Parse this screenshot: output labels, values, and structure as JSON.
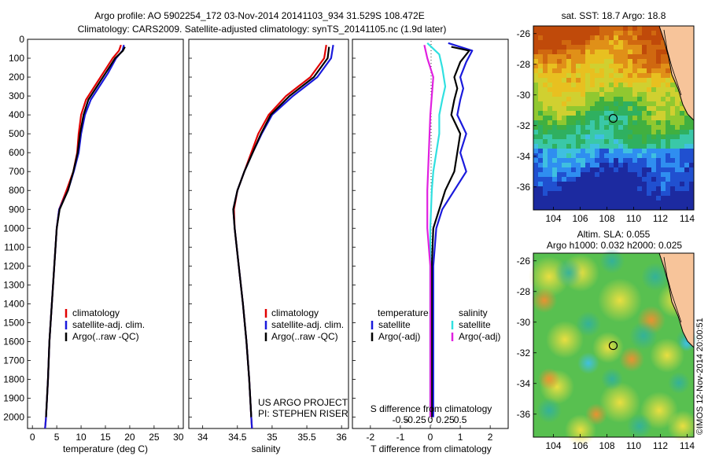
{
  "header": {
    "title_line1": "Argo profile: AO 5902254_172 03-Nov-2014 20141103_934 31.529S 108.472E",
    "title_line2": "Climatology: CARS2009. Satellite-adjusted climatology: synTS_20141105.nc (1.9d later)"
  },
  "colors": {
    "climatology": "#e00000",
    "satellite": "#1a1adc",
    "argo": "#000000",
    "sal_sat": "#30e0e0",
    "sal_argo": "#e020e0"
  },
  "chart_data": [
    {
      "type": "line",
      "name": "temperature-profile",
      "xlabel": "temperature (deg C)",
      "xticks": [
        0,
        5,
        10,
        15,
        20,
        25,
        30
      ],
      "xlim": [
        -1,
        31
      ],
      "ylim": [
        2060,
        0
      ],
      "yticks": [
        0,
        100,
        200,
        300,
        400,
        500,
        600,
        700,
        800,
        900,
        1000,
        1100,
        1200,
        1300,
        1400,
        1500,
        1600,
        1700,
        1800,
        1900,
        2000
      ],
      "legend": [
        "climatology",
        "satellite-adj. clim.",
        "Argo(..raw -QC)"
      ],
      "series": [
        {
          "name": "climatology",
          "color": "#e00000",
          "points": [
            [
              18.2,
              30
            ],
            [
              17.8,
              60
            ],
            [
              16.5,
              100
            ],
            [
              14.5,
              180
            ],
            [
              12.5,
              260
            ],
            [
              11,
              320
            ],
            [
              10,
              400
            ],
            [
              9.5,
              500
            ],
            [
              9.2,
              600
            ],
            [
              8.4,
              700
            ],
            [
              7,
              800
            ],
            [
              5.5,
              900
            ],
            [
              5,
              1000
            ],
            [
              4.5,
              1200
            ],
            [
              4,
              1400
            ],
            [
              3.5,
              1600
            ],
            [
              3.2,
              1800
            ],
            [
              2.8,
              2000
            ],
            [
              2.6,
              2060
            ]
          ]
        },
        {
          "name": "satellite-adj. clim.",
          "color": "#1a1adc",
          "points": [
            [
              18.8,
              30
            ],
            [
              18.5,
              60
            ],
            [
              17.2,
              100
            ],
            [
              15.5,
              180
            ],
            [
              13.5,
              260
            ],
            [
              12,
              320
            ],
            [
              10.8,
              400
            ],
            [
              10,
              500
            ],
            [
              9.5,
              600
            ],
            [
              8.5,
              700
            ],
            [
              7.3,
              800
            ],
            [
              5.5,
              900
            ],
            [
              5,
              1000
            ],
            [
              4.5,
              1200
            ],
            [
              4,
              1400
            ],
            [
              3.5,
              1600
            ],
            [
              3.2,
              1800
            ],
            [
              2.8,
              2000
            ],
            [
              2.6,
              2060
            ]
          ]
        },
        {
          "name": "Argo(..raw -QC)",
          "color": "#000000",
          "points": [
            [
              19,
              40
            ],
            [
              18.6,
              60
            ],
            [
              17,
              100
            ],
            [
              15,
              180
            ],
            [
              13,
              260
            ],
            [
              11.5,
              320
            ],
            [
              10.5,
              400
            ],
            [
              9.8,
              500
            ],
            [
              9.3,
              600
            ],
            [
              8.4,
              700
            ],
            [
              7.3,
              800
            ],
            [
              5.6,
              900
            ],
            [
              5,
              1000
            ],
            [
              4.5,
              1200
            ],
            [
              4,
              1400
            ],
            [
              3.5,
              1600
            ],
            [
              3.2,
              1800
            ],
            [
              2.8,
              2000
            ]
          ]
        }
      ]
    },
    {
      "type": "line",
      "name": "salinity-profile",
      "xlabel": "salinity",
      "xticks": [
        34,
        34.5,
        35,
        35.5,
        36
      ],
      "xlim": [
        33.8,
        36.1
      ],
      "ylim": [
        2060,
        0
      ],
      "legend": [
        "climatology",
        "satellite-adj. clim.",
        "Argo(..raw -QC)"
      ],
      "annotation": [
        "US ARGO PROJECT",
        "PI: STEPHEN RISER"
      ],
      "series": [
        {
          "name": "climatology",
          "color": "#e00000",
          "points": [
            [
              35.78,
              30
            ],
            [
              35.75,
              100
            ],
            [
              35.55,
              200
            ],
            [
              35.2,
              300
            ],
            [
              34.95,
              400
            ],
            [
              34.8,
              500
            ],
            [
              34.7,
              600
            ],
            [
              34.6,
              700
            ],
            [
              34.5,
              800
            ],
            [
              34.45,
              900
            ],
            [
              34.46,
              1000
            ],
            [
              34.52,
              1200
            ],
            [
              34.58,
              1400
            ],
            [
              34.63,
              1600
            ],
            [
              34.67,
              1800
            ],
            [
              34.7,
              2000
            ],
            [
              34.71,
              2060
            ]
          ]
        },
        {
          "name": "satellite-adj. clim.",
          "color": "#1a1adc",
          "points": [
            [
              35.88,
              30
            ],
            [
              35.85,
              100
            ],
            [
              35.65,
              200
            ],
            [
              35.3,
              300
            ],
            [
              35.0,
              400
            ],
            [
              34.85,
              500
            ],
            [
              34.72,
              600
            ],
            [
              34.6,
              700
            ],
            [
              34.5,
              800
            ],
            [
              34.44,
              900
            ],
            [
              34.46,
              1000
            ],
            [
              34.52,
              1200
            ],
            [
              34.58,
              1400
            ],
            [
              34.63,
              1600
            ],
            [
              34.67,
              1800
            ],
            [
              34.7,
              2000
            ],
            [
              34.71,
              2060
            ]
          ]
        },
        {
          "name": "Argo(..raw -QC)",
          "color": "#000000",
          "points": [
            [
              35.82,
              40
            ],
            [
              35.8,
              100
            ],
            [
              35.6,
              200
            ],
            [
              35.25,
              300
            ],
            [
              34.98,
              400
            ],
            [
              34.84,
              500
            ],
            [
              34.72,
              600
            ],
            [
              34.6,
              700
            ],
            [
              34.5,
              800
            ],
            [
              34.44,
              900
            ],
            [
              34.46,
              1000
            ],
            [
              34.52,
              1200
            ],
            [
              34.58,
              1400
            ],
            [
              34.63,
              1600
            ],
            [
              34.67,
              1800
            ],
            [
              34.7,
              2000
            ]
          ]
        }
      ]
    },
    {
      "type": "line",
      "name": "difference-profile",
      "xlabel": "T difference from climatology",
      "xticks": [
        -2,
        -1,
        0,
        1,
        2
      ],
      "top_xlabel": "S difference from climatology",
      "top_xticks": [
        "-0.5",
        "-0.25",
        "0",
        "0.25",
        "0.5"
      ],
      "xlim": [
        -2.6,
        2.6
      ],
      "ylim": [
        2060,
        0
      ],
      "legend_left_title": "temperature",
      "legend_right_title": "salinity",
      "legend": [
        "satellite",
        "Argo(-adj)",
        "satellite",
        "Argo(-adj)"
      ],
      "series": [
        {
          "name": "temperature satellite",
          "color": "#1a1adc",
          "points": [
            [
              0.6,
              20
            ],
            [
              1.4,
              60
            ],
            [
              1.2,
              120
            ],
            [
              1.0,
              200
            ],
            [
              1.1,
              260
            ],
            [
              1.0,
              320
            ],
            [
              0.9,
              400
            ],
            [
              1.2,
              500
            ],
            [
              1.0,
              600
            ],
            [
              1.2,
              700
            ],
            [
              0.8,
              800
            ],
            [
              0.4,
              900
            ],
            [
              0.2,
              1000
            ],
            [
              0.1,
              1200
            ],
            [
              0.1,
              1500
            ],
            [
              0.1,
              2000
            ]
          ]
        },
        {
          "name": "temperature Argo(-adj)",
          "color": "#000000",
          "points": [
            [
              0.7,
              40
            ],
            [
              1.3,
              60
            ],
            [
              1.0,
              120
            ],
            [
              0.8,
              200
            ],
            [
              0.9,
              260
            ],
            [
              0.8,
              320
            ],
            [
              0.7,
              400
            ],
            [
              1.0,
              500
            ],
            [
              0.9,
              600
            ],
            [
              0.8,
              700
            ],
            [
              0.5,
              800
            ],
            [
              0.3,
              900
            ],
            [
              0.1,
              1000
            ],
            [
              0.05,
              1200
            ],
            [
              0.05,
              1500
            ],
            [
              0.05,
              2000
            ]
          ]
        },
        {
          "name": "salinity satellite",
          "color": "#30e0e0",
          "points": [
            [
              -0.1,
              20
            ],
            [
              0.3,
              80
            ],
            [
              0.4,
              150
            ],
            [
              0.5,
              250
            ],
            [
              0.4,
              320
            ],
            [
              0.3,
              400
            ],
            [
              0.3,
              500
            ],
            [
              0.2,
              600
            ],
            [
              0.1,
              700
            ],
            [
              0.05,
              800
            ],
            [
              0.0,
              1000
            ],
            [
              0.0,
              1500
            ],
            [
              0.0,
              2000
            ]
          ]
        },
        {
          "name": "salinity Argo(-adj)",
          "color": "#e020e0",
          "points": [
            [
              -0.2,
              30
            ],
            [
              -0.1,
              100
            ],
            [
              0.1,
              200
            ],
            [
              0.0,
              400
            ],
            [
              -0.05,
              600
            ],
            [
              -0.1,
              800
            ],
            [
              -0.1,
              1000
            ],
            [
              0.0,
              1200
            ],
            [
              0.0,
              1600
            ],
            [
              0.0,
              2000
            ]
          ]
        }
      ]
    },
    {
      "type": "heatmap",
      "name": "sst-map",
      "title": "sat. SST: 18.7 Argo: 18.8",
      "xticks": [
        104,
        106,
        108,
        110,
        112,
        114
      ],
      "yticks": [
        -26,
        -28,
        -30,
        -32,
        -34,
        -36
      ],
      "xlim": [
        102.5,
        114.5
      ],
      "ylim": [
        -37.5,
        -25.5
      ],
      "argo_position": [
        108.47,
        -31.53
      ]
    },
    {
      "type": "heatmap",
      "name": "sla-map",
      "title_line1": "Altim. SLA: 0.055",
      "title_line2": "Argo h1000: 0.032 h2000: 0.025",
      "xticks": [
        104,
        106,
        108,
        110,
        112,
        114
      ],
      "yticks": [
        -26,
        -28,
        -30,
        -32,
        -34,
        -36
      ],
      "xlim": [
        102.5,
        114.5
      ],
      "ylim": [
        -37.5,
        -25.5
      ],
      "argo_position": [
        108.47,
        -31.53
      ]
    }
  ],
  "footer": {
    "credit": "©IMOS 12-Nov-2014 20:00:51"
  }
}
